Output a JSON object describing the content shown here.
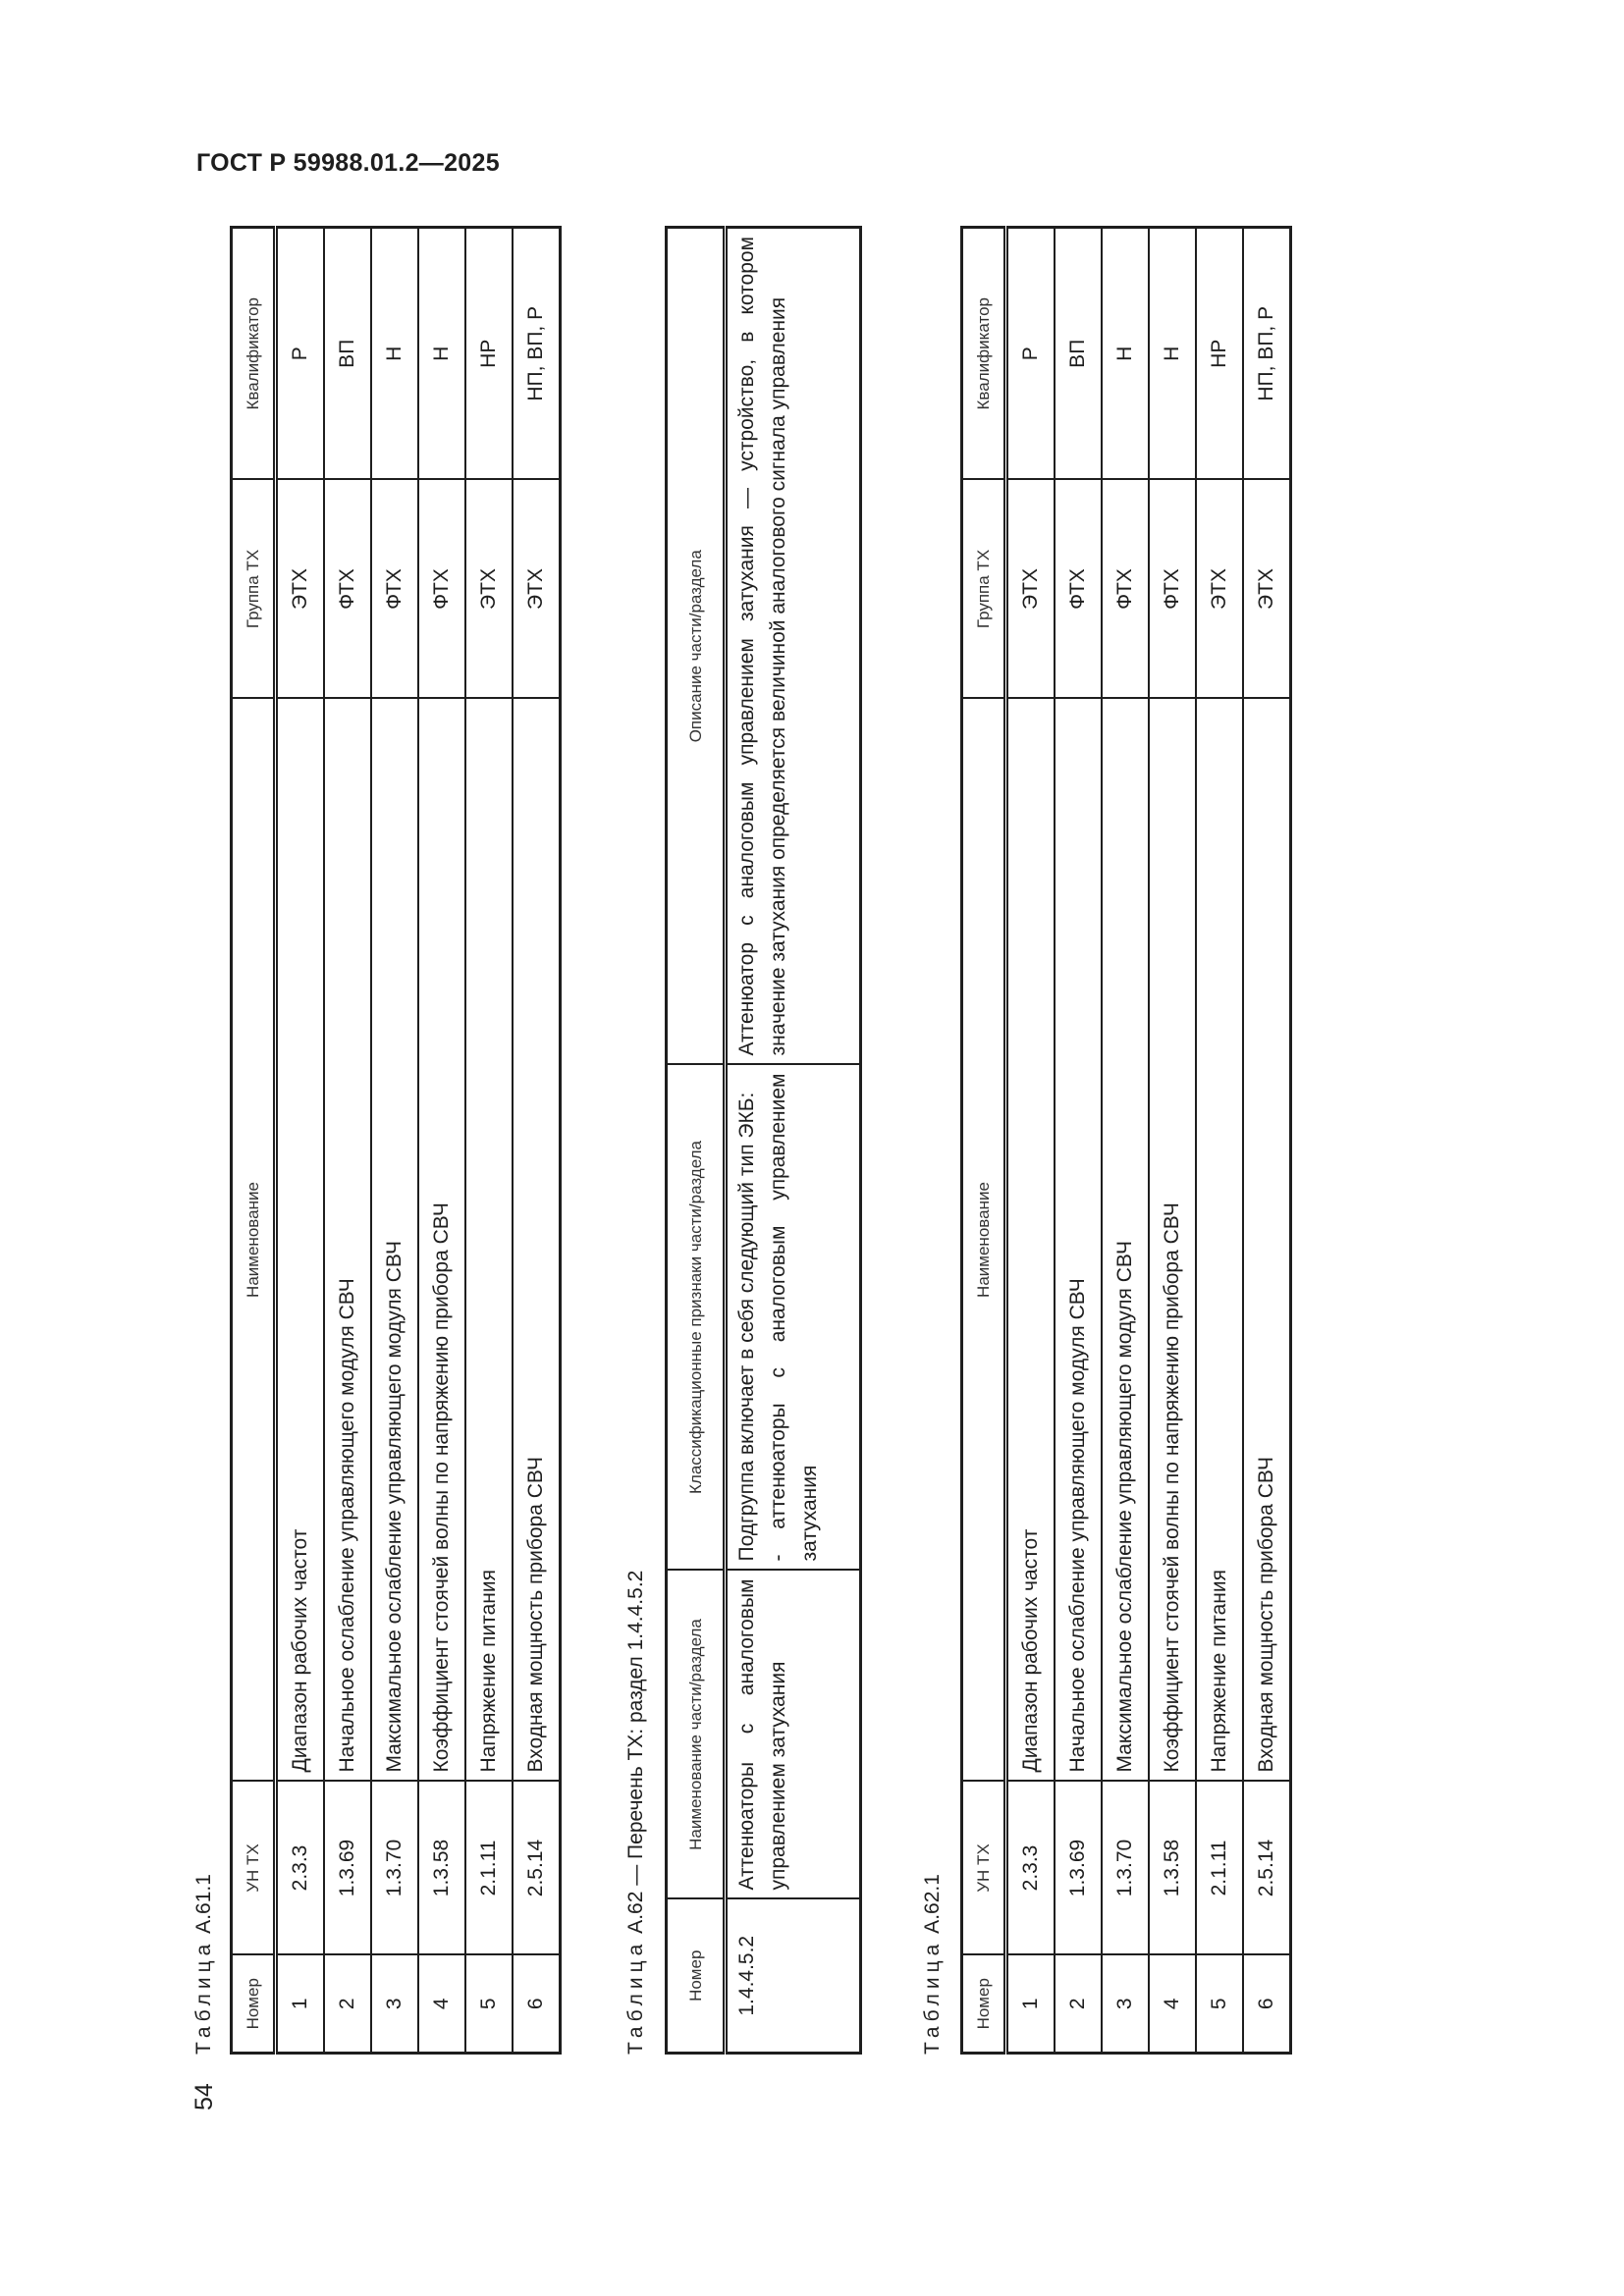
{
  "header": {
    "title": "ГОСТ Р 59988.01.2—2025"
  },
  "page_number": "54",
  "table_a61_1": {
    "caption_prefix": "Таблица",
    "caption_id": "А.61.1",
    "columns": [
      "Номер",
      "УН ТХ",
      "Наименование",
      "Группа ТХ",
      "Квалификатор"
    ],
    "rows": [
      [
        "1",
        "2.3.3",
        "Диапазон рабочих частот",
        "ЭТХ",
        "Р"
      ],
      [
        "2",
        "1.3.69",
        "Начальное ослабление управляющего модуля СВЧ",
        "ФТХ",
        "ВП"
      ],
      [
        "3",
        "1.3.70",
        "Максимальное ослабление управляющего модуля СВЧ",
        "ФТХ",
        "Н"
      ],
      [
        "4",
        "1.3.58",
        "Коэффициент стоячей волны по напряжению прибора СВЧ",
        "ФТХ",
        "Н"
      ],
      [
        "5",
        "2.1.11",
        "Напряжение питания",
        "ЭТХ",
        "НР"
      ],
      [
        "6",
        "2.5.14",
        "Входная мощность прибора СВЧ",
        "ЭТХ",
        "НП, ВП, Р"
      ]
    ]
  },
  "table_a62": {
    "caption_prefix": "Таблица",
    "caption_rest": "А.62 — Перечень ТХ: раздел 1.4.4.5.2",
    "columns": [
      "Номер",
      "Наименование части/раздела",
      "Классификационные признаки части/раздела",
      "Описание части/раздела"
    ],
    "row": {
      "number": "1.4.4.5.2",
      "name": "Аттенюаторы с аналоговым управлением затухания",
      "features_line1": "Подгруппа включает в себя следующий тип ЭКБ:",
      "features_line2": "- аттенюаторы с аналоговым управлением затухания",
      "description": "Аттенюатор с аналоговым управлением затухания — устройство, в котором значение затухания определяется величиной аналогового сигнала управления"
    }
  },
  "table_a62_1": {
    "caption_prefix": "Таблица",
    "caption_id": "А.62.1",
    "columns": [
      "Номер",
      "УН ТХ",
      "Наименование",
      "Группа ТХ",
      "Квалификатор"
    ],
    "rows": [
      [
        "1",
        "2.3.3",
        "Диапазон рабочих частот",
        "ЭТХ",
        "Р"
      ],
      [
        "2",
        "1.3.69",
        "Начальное ослабление управляющего модуля СВЧ",
        "ФТХ",
        "ВП"
      ],
      [
        "3",
        "1.3.70",
        "Максимальное ослабление управляющего модуля СВЧ",
        "ФТХ",
        "Н"
      ],
      [
        "4",
        "1.3.58",
        "Коэффициент стоячей волны по напряжению прибора СВЧ",
        "ФТХ",
        "Н"
      ],
      [
        "5",
        "2.1.11",
        "Напряжение питания",
        "ЭТХ",
        "НР"
      ],
      [
        "6",
        "2.5.14",
        "Входная мощность прибора СВЧ",
        "ЭТХ",
        "НП, ВП, Р"
      ]
    ]
  }
}
